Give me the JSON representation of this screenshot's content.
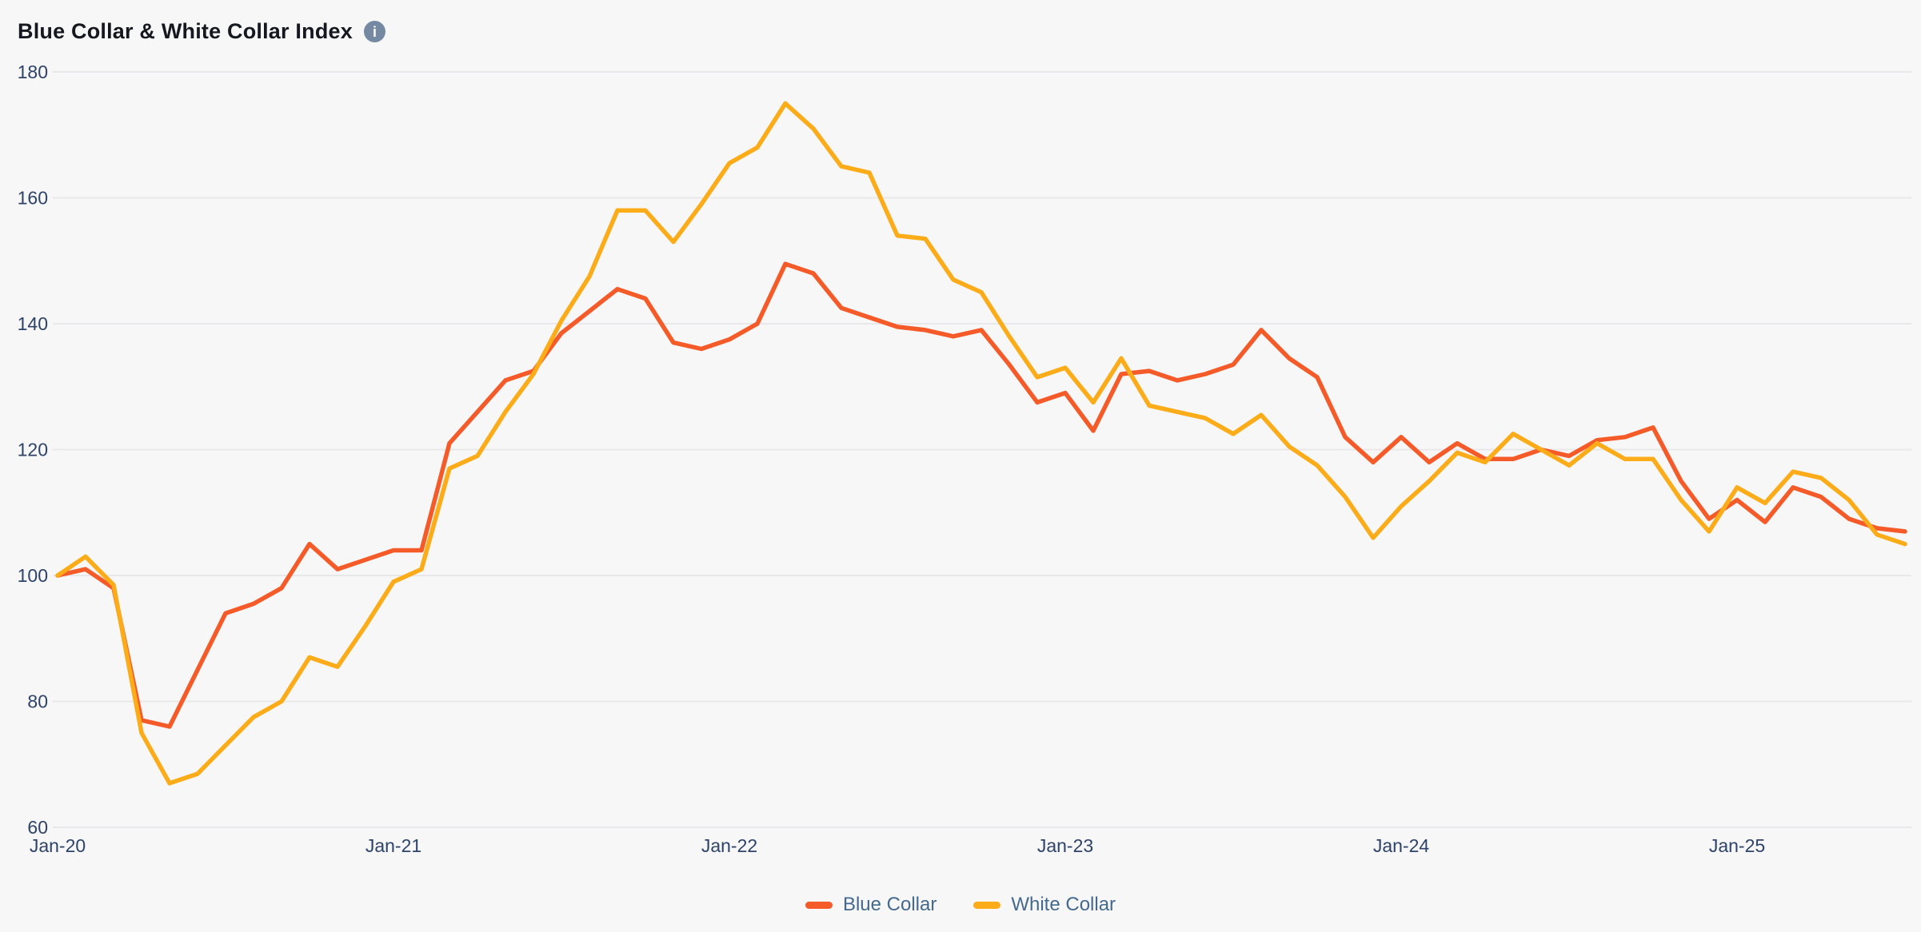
{
  "header": {
    "title": "Blue Collar & White Collar Index",
    "info_icon_glyph": "i"
  },
  "colors": {
    "background": "#f7f7f8",
    "gridline": "#e8e8ea",
    "axis_label": "#2e4369",
    "legend_text": "#44698e",
    "title_text": "#15181e",
    "info_icon_bg": "#7589a3",
    "blue_collar": "#F45B29",
    "white_collar": "#FBAC18"
  },
  "chart_data": {
    "type": "line",
    "title": "Blue Collar & White Collar Index",
    "frequency": "monthly",
    "start_label": "Jan-20",
    "end_label": "Jul-25",
    "x_tick_labels": [
      "Jan-20",
      "Jan-21",
      "Jan-22",
      "Jan-23",
      "Jan-24",
      "Jan-25"
    ],
    "x_tick_month_indices": [
      0,
      12,
      24,
      36,
      48,
      60
    ],
    "y_ticks": [
      180,
      160,
      140,
      120,
      100,
      80,
      60
    ],
    "ylim": [
      60,
      180
    ],
    "grid": "horizontal",
    "legend_position": "bottom-center",
    "series": [
      {
        "name": "Blue Collar",
        "color": "#F45B29",
        "values": [
          100,
          101,
          98,
          77,
          76,
          85,
          94,
          95.5,
          98,
          105,
          101,
          102.5,
          104,
          104,
          121,
          126,
          131,
          132.5,
          138.5,
          142,
          145.5,
          144,
          137,
          136,
          137.5,
          140,
          149.5,
          148,
          142.5,
          141,
          139.5,
          139,
          138,
          139,
          133.5,
          127.5,
          129,
          123,
          132,
          132.5,
          131,
          132,
          133.5,
          139,
          134.5,
          131.5,
          122,
          118,
          122,
          118,
          121,
          118.5,
          118.5,
          120,
          119,
          121.5,
          122,
          123.5,
          115,
          109,
          112,
          108.5,
          114,
          112.5,
          109,
          107.5,
          107
        ]
      },
      {
        "name": "White Collar",
        "color": "#FBAC18",
        "values": [
          100,
          103,
          98.5,
          75,
          67,
          68.5,
          73,
          77.5,
          80,
          87,
          85.5,
          92,
          99,
          101,
          117,
          119,
          126,
          132,
          140.5,
          147.5,
          158,
          158,
          153,
          159,
          165.5,
          168,
          175,
          171,
          165,
          164,
          154,
          153.5,
          147,
          145,
          138,
          131.5,
          133,
          127.5,
          134.5,
          127,
          126,
          125,
          122.5,
          125.5,
          120.5,
          117.5,
          112.5,
          106,
          111,
          115,
          119.5,
          118,
          122.5,
          120,
          117.5,
          121,
          118.5,
          118.5,
          112,
          107,
          114,
          111.5,
          116.5,
          115.5,
          112,
          106.5,
          105
        ]
      }
    ]
  },
  "legend": {
    "items": [
      {
        "label": "Blue Collar"
      },
      {
        "label": "White Collar"
      }
    ]
  }
}
